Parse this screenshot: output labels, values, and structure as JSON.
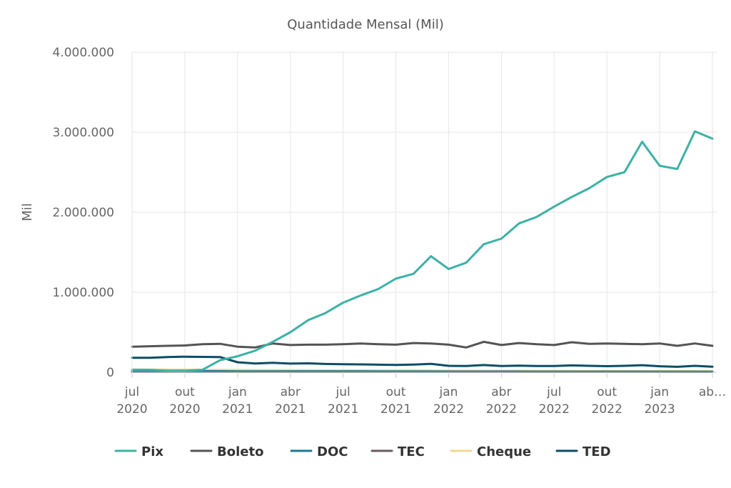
{
  "chart_data": {
    "type": "line",
    "title": "Quantidade Mensal (Mil)",
    "xlabel": "",
    "ylabel": "Mil",
    "ylim": [
      0,
      4000000
    ],
    "yticks": [
      0,
      1000000,
      2000000,
      3000000,
      4000000
    ],
    "ytick_labels": [
      "0",
      "1.000.000",
      "2.000.000",
      "3.000.000",
      "4.000.000"
    ],
    "x_start": "2020-07",
    "x_count": 34,
    "xticks": [
      {
        "index": 0,
        "label": [
          "jul",
          "2020"
        ]
      },
      {
        "index": 3,
        "label": [
          "out",
          "2020"
        ]
      },
      {
        "index": 6,
        "label": [
          "jan",
          "2021"
        ]
      },
      {
        "index": 9,
        "label": [
          "abr",
          "2021"
        ]
      },
      {
        "index": 12,
        "label": [
          "jul",
          "2021"
        ]
      },
      {
        "index": 15,
        "label": [
          "out",
          "2021"
        ]
      },
      {
        "index": 18,
        "label": [
          "jan",
          "2022"
        ]
      },
      {
        "index": 21,
        "label": [
          "abr",
          "2022"
        ]
      },
      {
        "index": 24,
        "label": [
          "jul",
          "2022"
        ]
      },
      {
        "index": 27,
        "label": [
          "out",
          "2022"
        ]
      },
      {
        "index": 30,
        "label": [
          "jan",
          "2023"
        ]
      },
      {
        "index": 33,
        "label": [
          "ab…",
          ""
        ]
      }
    ],
    "grid": true,
    "legend_position": "bottom",
    "series": [
      {
        "name": "Pix",
        "color": "#3db1a6",
        "values": [
          30000,
          30000,
          20000,
          20000,
          30000,
          150000,
          200000,
          270000,
          380000,
          500000,
          650000,
          740000,
          870000,
          960000,
          1040000,
          1170000,
          1230000,
          1450000,
          1290000,
          1370000,
          1600000,
          1670000,
          1860000,
          1940000,
          2070000,
          2190000,
          2300000,
          2440000,
          2500000,
          2880000,
          2580000,
          2540000,
          3010000,
          2920000
        ]
      },
      {
        "name": "Boleto",
        "color": "#545454",
        "values": [
          320000,
          325000,
          330000,
          335000,
          350000,
          355000,
          320000,
          310000,
          360000,
          340000,
          345000,
          345000,
          350000,
          360000,
          350000,
          345000,
          365000,
          360000,
          345000,
          310000,
          380000,
          340000,
          365000,
          350000,
          340000,
          375000,
          355000,
          360000,
          355000,
          350000,
          360000,
          330000,
          360000,
          330000
        ]
      },
      {
        "name": "DOC",
        "color": "#1a7a94",
        "values": [
          15000,
          15000,
          15000,
          14000,
          14000,
          13000,
          12000,
          12000,
          12000,
          12000,
          11000,
          11000,
          11000,
          11000,
          10000,
          10000,
          10000,
          10000,
          9000,
          9000,
          9000,
          9000,
          9000,
          8000,
          8000,
          8000,
          8000,
          8000,
          8000,
          8000,
          7000,
          7000,
          7000,
          7000
        ]
      },
      {
        "name": "TEC",
        "color": "#6b5b61",
        "values": [
          5000,
          5000,
          5000,
          5000,
          5000,
          5000,
          5000,
          5000,
          5000,
          5000,
          5000,
          5000,
          5000,
          5000,
          5000,
          5000,
          5000,
          5000,
          5000,
          5000,
          5000,
          5000,
          5000,
          5000,
          5000,
          5000,
          5000,
          5000,
          5000,
          5000,
          5000,
          5000,
          5000,
          5000
        ]
      },
      {
        "name": "Cheque",
        "color": "#f5d78e",
        "values": [
          35000,
          34000,
          33000,
          32000,
          31000,
          30000,
          29000,
          28000,
          28000,
          27000,
          26000,
          25000,
          25000,
          24000,
          23000,
          22000,
          22000,
          21000,
          20000,
          19000,
          19000,
          18000,
          18000,
          17000,
          17000,
          16000,
          16000,
          15000,
          15000,
          14000,
          14000,
          13000,
          13000,
          12000
        ]
      },
      {
        "name": "TED",
        "color": "#0d4d66",
        "values": [
          180000,
          180000,
          190000,
          195000,
          192000,
          190000,
          125000,
          110000,
          118000,
          108000,
          112000,
          104000,
          100000,
          98000,
          95000,
          92000,
          96000,
          105000,
          80000,
          78000,
          90000,
          78000,
          83000,
          78000,
          78000,
          86000,
          80000,
          76000,
          80000,
          88000,
          75000,
          68000,
          80000,
          70000
        ]
      }
    ]
  }
}
